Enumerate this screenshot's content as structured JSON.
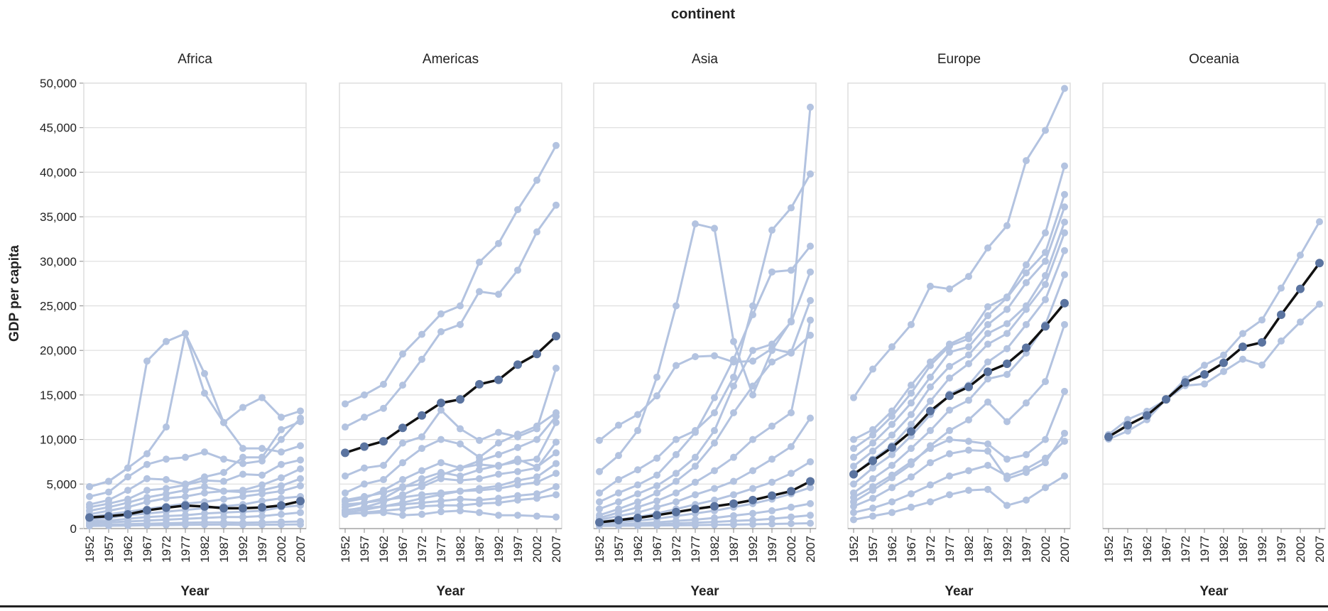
{
  "chart_data": {
    "type": "line",
    "facet_title": "continent",
    "ylabel": "GDP per capita",
    "xlabel": "Year",
    "ylim": [
      0,
      50000
    ],
    "y_ticks": [
      "0",
      "5,000",
      "10,000",
      "15,000",
      "20,000",
      "25,000",
      "30,000",
      "35,000",
      "40,000",
      "45,000",
      "50,000"
    ],
    "y_tick_values": [
      0,
      5000,
      10000,
      15000,
      20000,
      25000,
      30000,
      35000,
      40000,
      45000,
      50000
    ],
    "x": [
      1952,
      1957,
      1962,
      1967,
      1972,
      1977,
      1982,
      1987,
      1992,
      1997,
      2002,
      2007
    ],
    "x_tick_labels": [
      "1952",
      "1957",
      "1962",
      "1967",
      "1972",
      "1977",
      "1982",
      "1987",
      "1992",
      "1997",
      "2002",
      "2007"
    ],
    "grid": true,
    "colors": {
      "country": "#b3c3e0",
      "mean": "#111111",
      "mean_point": "#5b74a0"
    },
    "panels": [
      {
        "label": "Africa",
        "countries": [
          [
            4700,
            5300,
            6800,
            18800,
            21000,
            21900,
            17400,
            11900,
            13600,
            14700,
            12500,
            13200
          ],
          [
            4700,
            5300,
            6800,
            8400,
            11400,
            21900,
            15200,
            11900,
            9000,
            9000,
            8600,
            9300
          ],
          [
            3600,
            4100,
            5800,
            7200,
            7800,
            8000,
            8600,
            7800,
            7300,
            7600,
            10000,
            12400
          ],
          [
            2700,
            3200,
            4300,
            5600,
            5500,
            5000,
            5800,
            6300,
            8000,
            8000,
            11100,
            12000
          ],
          [
            2400,
            2800,
            3300,
            4300,
            4500,
            4900,
            5400,
            5300,
            6100,
            6000,
            7200,
            7700
          ],
          [
            2000,
            2400,
            2900,
            3500,
            3900,
            4300,
            4700,
            4200,
            4300,
            4900,
            5700,
            6700
          ],
          [
            1600,
            2000,
            2400,
            3000,
            3400,
            3600,
            4000,
            4200,
            4100,
            4300,
            4800,
            5600
          ],
          [
            1300,
            1600,
            1900,
            2200,
            2500,
            2800,
            3000,
            3300,
            3600,
            3900,
            4200,
            4800
          ],
          [
            1000,
            1200,
            1500,
            1700,
            1900,
            2100,
            2300,
            2500,
            2700,
            3100,
            3400,
            3600
          ],
          [
            800,
            900,
            1100,
            1300,
            1400,
            1500,
            1700,
            1800,
            1900,
            2000,
            2400,
            2600
          ],
          [
            600,
            700,
            800,
            900,
            1000,
            1100,
            1200,
            1300,
            1300,
            1400,
            1600,
            1800
          ],
          [
            400,
            450,
            500,
            550,
            600,
            650,
            700,
            700,
            650,
            700,
            750,
            800
          ],
          [
            300,
            320,
            340,
            380,
            400,
            420,
            440,
            450,
            420,
            430,
            450,
            470
          ]
        ],
        "mean": [
          1250,
          1385,
          1598,
          2050,
          2340,
          2586,
          2482,
          2283,
          2282,
          2379,
          2599,
          3089
        ]
      },
      {
        "label": "Americas",
        "countries": [
          [
            14000,
            15000,
            16200,
            19600,
            21800,
            24100,
            25000,
            29900,
            32000,
            35800,
            39100,
            43000
          ],
          [
            11400,
            12500,
            13500,
            16100,
            19000,
            22100,
            22900,
            26600,
            26300,
            29000,
            33300,
            36300
          ],
          [
            5900,
            6800,
            7100,
            9600,
            10300,
            13300,
            11200,
            9900,
            10800,
            10300,
            11200,
            18000
          ],
          [
            4000,
            5000,
            5500,
            7400,
            9000,
            10000,
            9500,
            8000,
            9600,
            10600,
            11500,
            13000
          ],
          [
            3000,
            3400,
            4300,
            5500,
            6500,
            7400,
            6800,
            7600,
            8300,
            9100,
            10000,
            12600
          ],
          [
            2400,
            2900,
            3400,
            4600,
            5600,
            6300,
            5900,
            6600,
            7100,
            7500,
            7800,
            11900
          ],
          [
            2000,
            2400,
            3000,
            3800,
            4700,
            5600,
            5400,
            5600,
            6100,
            6400,
            6800,
            9700
          ],
          [
            3200,
            3600,
            4000,
            4700,
            5000,
            6000,
            6800,
            7200,
            7000,
            7800,
            6900,
            8500
          ],
          [
            1800,
            2100,
            2500,
            2900,
            3400,
            3800,
            4200,
            4500,
            4800,
            5400,
            5800,
            7300
          ],
          [
            2700,
            2900,
            3200,
            3500,
            3800,
            4000,
            4200,
            4300,
            4500,
            4900,
            5200,
            6200
          ],
          [
            2100,
            2300,
            2500,
            2700,
            2900,
            3100,
            3300,
            3200,
            3400,
            3700,
            3900,
            4700
          ],
          [
            1600,
            1800,
            2000,
            2200,
            2500,
            2600,
            2600,
            2800,
            2900,
            3200,
            3400,
            3800
          ],
          [
            1800,
            1700,
            1800,
            1500,
            1600,
            1900,
            2000,
            1800,
            1500,
            1500,
            1400,
            1300
          ]
        ],
        "mean": [
          8500,
          9200,
          9800,
          11300,
          12700,
          14100,
          14500,
          16200,
          16700,
          18400,
          19600,
          21600
        ]
      },
      {
        "label": "Asia",
        "countries": [
          [
            9900,
            11600,
            12800,
            14900,
            18300,
            19300,
            19400,
            18700,
            18800,
            20200,
            19700,
            21700
          ],
          [
            6400,
            8200,
            11000,
            17000,
            25000,
            34200,
            33700,
            21000,
            15000,
            20000,
            23300,
            47300
          ],
          [
            4000,
            5500,
            6600,
            7900,
            10000,
            11000,
            13000,
            17000,
            25000,
            33500,
            36000,
            39800
          ],
          [
            3000,
            4000,
            4900,
            6000,
            8300,
            10800,
            14700,
            19000,
            24000,
            28800,
            29000,
            31700
          ],
          [
            2200,
            3000,
            3900,
            4800,
            6200,
            8000,
            11000,
            16000,
            20000,
            20700,
            23200,
            28800
          ],
          [
            1500,
            2200,
            3000,
            4000,
            5300,
            7000,
            9600,
            13000,
            16000,
            18700,
            19800,
            25600
          ],
          [
            1200,
            1800,
            2400,
            3100,
            4000,
            5200,
            6500,
            8000,
            10000,
            11500,
            13000,
            23400
          ],
          [
            1000,
            1400,
            1800,
            2400,
            3000,
            3800,
            4500,
            5300,
            6500,
            7800,
            9200,
            12400
          ],
          [
            800,
            1000,
            1300,
            1700,
            2200,
            2700,
            3200,
            3800,
            4500,
            5200,
            6200,
            7500
          ],
          [
            600,
            750,
            900,
            1100,
            1400,
            1700,
            2000,
            2400,
            2800,
            3300,
            3900,
            4600
          ],
          [
            450,
            520,
            600,
            700,
            850,
            1000,
            1200,
            1450,
            1700,
            2000,
            2400,
            2800
          ],
          [
            350,
            400,
            450,
            500,
            580,
            650,
            750,
            850,
            950,
            1100,
            1300,
            1500
          ],
          [
            300,
            320,
            330,
            350,
            370,
            390,
            420,
            450,
            480,
            520,
            560,
            600
          ]
        ],
        "mean": [
          700,
          950,
          1200,
          1500,
          1850,
          2200,
          2500,
          2800,
          3200,
          3700,
          4200,
          5300
        ]
      },
      {
        "label": "Europe",
        "countries": [
          [
            14700,
            17900,
            20400,
            22900,
            27200,
            26900,
            28300,
            31500,
            34000,
            41300,
            44700,
            49400
          ],
          [
            10000,
            11100,
            13200,
            16100,
            18700,
            20700,
            21700,
            24900,
            26000,
            29600,
            33200,
            40700
          ],
          [
            9000,
            10500,
            12600,
            15200,
            18300,
            20500,
            21300,
            23900,
            25900,
            28700,
            31000,
            37500
          ],
          [
            8000,
            9600,
            11700,
            14100,
            17000,
            19800,
            20400,
            22900,
            24600,
            27600,
            30000,
            36100
          ],
          [
            7000,
            8700,
            10500,
            12800,
            15900,
            18200,
            19500,
            21900,
            23000,
            25000,
            28400,
            34400
          ],
          [
            6000,
            7800,
            9300,
            11700,
            14300,
            16900,
            18500,
            20700,
            21900,
            24600,
            27400,
            33200
          ],
          [
            5000,
            6800,
            8300,
            10400,
            12800,
            15100,
            16100,
            18700,
            20200,
            22900,
            25700,
            31200
          ],
          [
            4000,
            5600,
            7100,
            9000,
            11000,
            13300,
            14400,
            16800,
            17300,
            19700,
            22900,
            28500
          ],
          [
            3000,
            4300,
            5700,
            7200,
            9300,
            11000,
            12200,
            14200,
            12000,
            14100,
            16500,
            22900
          ],
          [
            3500,
            4700,
            6000,
            7500,
            9000,
            10000,
            9800,
            9500,
            7800,
            8300,
            10000,
            15400
          ],
          [
            2500,
            3400,
            4600,
            5800,
            7400,
            8400,
            8800,
            8700,
            5600,
            6300,
            7400,
            10700
          ],
          [
            1800,
            2300,
            3000,
            3900,
            4900,
            5900,
            6500,
            7100,
            5900,
            6700,
            7900,
            9800
          ],
          [
            1000,
            1400,
            1800,
            2400,
            3000,
            3800,
            4300,
            4400,
            2600,
            3200,
            4600,
            5900
          ]
        ],
        "mean": [
          6100,
          7600,
          9100,
          10900,
          13200,
          14900,
          15900,
          17600,
          18500,
          20300,
          22700,
          25300
        ]
      },
      {
        "label": "Oceania",
        "countries": [
          [
            10040,
            10950,
            12220,
            14530,
            16790,
            18330,
            19480,
            21890,
            23420,
            26990,
            30690,
            34440
          ],
          [
            10560,
            12250,
            13170,
            14460,
            16050,
            16230,
            17630,
            19010,
            18360,
            21050,
            23190,
            25190
          ]
        ],
        "mean": [
          10300,
          11600,
          12700,
          14500,
          16400,
          17300,
          18600,
          20400,
          20900,
          24000,
          26900,
          29800
        ]
      }
    ]
  }
}
